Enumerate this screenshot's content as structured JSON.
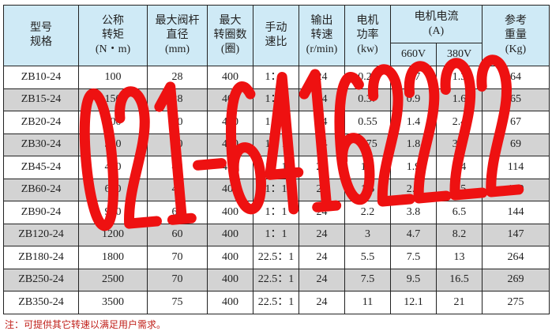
{
  "table": {
    "headers": {
      "model": [
        "型号",
        "规格"
      ],
      "torque": [
        "公称",
        "转矩",
        "(N・m)"
      ],
      "stem": [
        "最大阀杆",
        "直径",
        "(mm)"
      ],
      "turns": [
        "最大",
        "转圈数",
        "(圈)"
      ],
      "ratio": [
        "手动",
        "速比"
      ],
      "speed": [
        "输出",
        "转速",
        "(r/min)"
      ],
      "power": [
        "电机",
        "功率",
        "(kw)"
      ],
      "current": [
        "电机电流",
        "(A)"
      ],
      "v660": "660V",
      "v380": "380V",
      "weight": [
        "参考",
        "重量",
        "(Kg)"
      ]
    },
    "rows": [
      [
        "ZB10-24",
        "100",
        "28",
        "400",
        "1：1",
        "24",
        "0.25",
        "0.7",
        "1.3",
        "64"
      ],
      [
        "ZB15-24",
        "150",
        "28",
        "400",
        "1：1",
        "24",
        "0.37",
        "0.9",
        "1.6",
        "65"
      ],
      [
        "ZB20-24",
        "200",
        "40",
        "400",
        "1：1",
        "24",
        "0.55",
        "1.4",
        "2.4",
        "67"
      ],
      [
        "ZB30-24",
        "300",
        "40",
        "400",
        "1：1",
        "24",
        "0.75",
        "1.8",
        "3.0",
        "69"
      ],
      [
        "ZB45-24",
        "450",
        "48",
        "400",
        "1：1",
        "24",
        "1.1",
        "1.9",
        "3.4",
        "114"
      ],
      [
        "ZB60-24",
        "600",
        "48",
        "400",
        "1：1",
        "24",
        "1.5",
        "2.6",
        "4.5",
        "120"
      ],
      [
        "ZB90-24",
        "900",
        "60",
        "400",
        "1：1",
        "24",
        "2.2",
        "3.8",
        "6.5",
        "144"
      ],
      [
        "ZB120-24",
        "1200",
        "60",
        "400",
        "1：1",
        "24",
        "3",
        "4.7",
        "8.2",
        "147"
      ],
      [
        "ZB180-24",
        "1800",
        "70",
        "400",
        "22.5：1",
        "24",
        "5.5",
        "7.5",
        "13",
        "264"
      ],
      [
        "ZB250-24",
        "2500",
        "70",
        "400",
        "22.5：1",
        "24",
        "7.5",
        "9.5",
        "16.5",
        "269"
      ],
      [
        "ZB350-24",
        "3500",
        "75",
        "400",
        "22.5：1",
        "24",
        "11",
        "12.1",
        "21",
        "275"
      ]
    ]
  },
  "note": "注：可提供其它转速以满足用户需求。",
  "watermark": {
    "text": "021-64162222",
    "color": "#ee1111"
  }
}
